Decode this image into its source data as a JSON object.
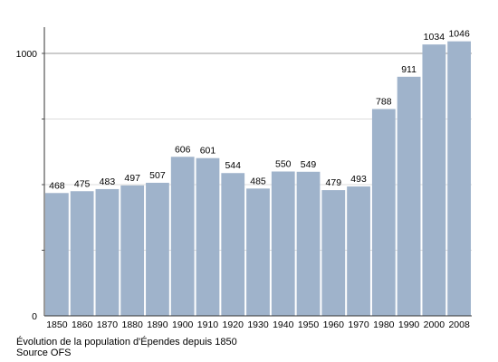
{
  "chart_data": {
    "type": "bar",
    "categories": [
      "1850",
      "1860",
      "1870",
      "1880",
      "1890",
      "1900",
      "1910",
      "1920",
      "1930",
      "1940",
      "1950",
      "1960",
      "1970",
      "1980",
      "1990",
      "2000",
      "2008"
    ],
    "values": [
      468,
      475,
      483,
      497,
      507,
      606,
      601,
      544,
      485,
      550,
      549,
      479,
      493,
      788,
      911,
      1034,
      1046
    ],
    "ylim": [
      0,
      1100
    ],
    "yticks": [
      0,
      1000
    ],
    "ytick_labels": [
      "0",
      "1000"
    ],
    "grid": true,
    "bar_color": "#9fb3cb",
    "title": "",
    "xlabel": "",
    "ylabel": ""
  },
  "caption": {
    "line1": "Évolution de la population d'Épendes depuis 1850",
    "line2": "Source OFS"
  }
}
